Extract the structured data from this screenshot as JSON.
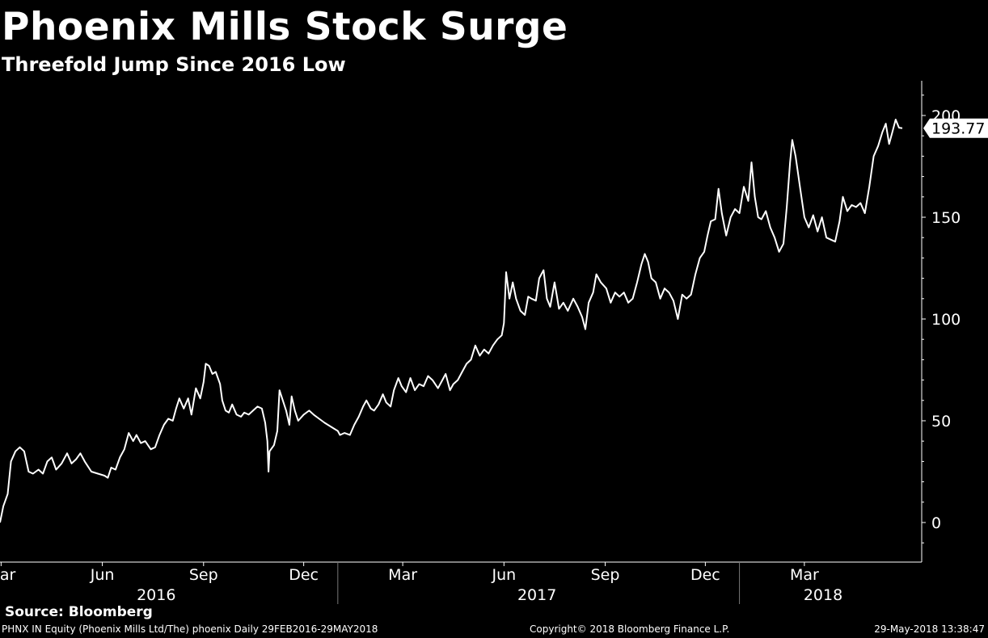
{
  "header": {
    "title": "Phoenix Mills Stock Surge",
    "subtitle": "Threefold Jump Since 2016 Low"
  },
  "footer": {
    "source": "Source: Bloomberg",
    "left": "PHNX IN Equity (Phoenix Mills Ltd/The) phoenix  Daily 29FEB2016-29MAY2018",
    "middle": "Copyright© 2018 Bloomberg Finance L.P.",
    "right": "29-May-2018 13:38:47"
  },
  "chart_data": {
    "type": "line",
    "title": "Phoenix Mills Stock Surge",
    "subtitle": "Threefold Jump Since 2016 Low",
    "xlabel": "",
    "ylabel": "",
    "ylim": [
      -20,
      220
    ],
    "yticks": [
      0,
      50,
      100,
      150,
      200
    ],
    "y_axis_side": "right",
    "grid": false,
    "colors": {
      "background": "#000000",
      "line": "#ffffff",
      "text": "#ffffff"
    },
    "last_value_label": "193.77",
    "x_month_ticks": [
      {
        "label": "Mar",
        "x": "2016-03-01"
      },
      {
        "label": "Jun",
        "x": "2016-06-01"
      },
      {
        "label": "Sep",
        "x": "2016-09-01"
      },
      {
        "label": "Dec",
        "x": "2016-12-01"
      },
      {
        "label": "Mar",
        "x": "2017-03-01"
      },
      {
        "label": "Jun",
        "x": "2017-06-01"
      },
      {
        "label": "Sep",
        "x": "2017-09-01"
      },
      {
        "label": "Dec",
        "x": "2017-12-01"
      },
      {
        "label": "Mar",
        "x": "2018-03-01"
      }
    ],
    "x_year_labels": [
      {
        "label": "2016",
        "x": "2016-07-20"
      },
      {
        "label": "2017",
        "x": "2017-07-01"
      },
      {
        "label": "2018",
        "x": "2018-03-18"
      }
    ],
    "x_year_boundaries": [
      "2017-01-01",
      "2018-01-01"
    ],
    "series": [
      {
        "points": [
          [
            "2016-02-29",
            0
          ],
          [
            "2016-03-03",
            8
          ],
          [
            "2016-03-07",
            14
          ],
          [
            "2016-03-10",
            30
          ],
          [
            "2016-03-14",
            35
          ],
          [
            "2016-03-18",
            37
          ],
          [
            "2016-03-22",
            35
          ],
          [
            "2016-03-26",
            25
          ],
          [
            "2016-03-30",
            24
          ],
          [
            "2016-04-04",
            26
          ],
          [
            "2016-04-08",
            24
          ],
          [
            "2016-04-12",
            30
          ],
          [
            "2016-04-16",
            32
          ],
          [
            "2016-04-20",
            26
          ],
          [
            "2016-04-25",
            29
          ],
          [
            "2016-04-30",
            34
          ],
          [
            "2016-05-04",
            29
          ],
          [
            "2016-05-08",
            31
          ],
          [
            "2016-05-12",
            34
          ],
          [
            "2016-05-16",
            30
          ],
          [
            "2016-05-22",
            25
          ],
          [
            "2016-05-28",
            24
          ],
          [
            "2016-06-03",
            23
          ],
          [
            "2016-06-06",
            22
          ],
          [
            "2016-06-09",
            27
          ],
          [
            "2016-06-13",
            26
          ],
          [
            "2016-06-17",
            32
          ],
          [
            "2016-06-21",
            36
          ],
          [
            "2016-06-25",
            44
          ],
          [
            "2016-06-29",
            40
          ],
          [
            "2016-07-02",
            43
          ],
          [
            "2016-07-06",
            39
          ],
          [
            "2016-07-10",
            40
          ],
          [
            "2016-07-15",
            36
          ],
          [
            "2016-07-19",
            37
          ],
          [
            "2016-07-23",
            43
          ],
          [
            "2016-07-27",
            48
          ],
          [
            "2016-07-31",
            51
          ],
          [
            "2016-08-04",
            50
          ],
          [
            "2016-08-07",
            56
          ],
          [
            "2016-08-10",
            61
          ],
          [
            "2016-08-14",
            56
          ],
          [
            "2016-08-18",
            61
          ],
          [
            "2016-08-21",
            53
          ],
          [
            "2016-08-25",
            66
          ],
          [
            "2016-08-29",
            61
          ],
          [
            "2016-09-01",
            69
          ],
          [
            "2016-09-03",
            78
          ],
          [
            "2016-09-06",
            77
          ],
          [
            "2016-09-09",
            73
          ],
          [
            "2016-09-12",
            74
          ],
          [
            "2016-09-16",
            68
          ],
          [
            "2016-09-18",
            60
          ],
          [
            "2016-09-21",
            55
          ],
          [
            "2016-09-24",
            54
          ],
          [
            "2016-09-27",
            58
          ],
          [
            "2016-10-01",
            53
          ],
          [
            "2016-10-05",
            52
          ],
          [
            "2016-10-08",
            54
          ],
          [
            "2016-10-12",
            53
          ],
          [
            "2016-10-16",
            55
          ],
          [
            "2016-10-20",
            57
          ],
          [
            "2016-10-24",
            56
          ],
          [
            "2016-10-27",
            49
          ],
          [
            "2016-10-29",
            40
          ],
          [
            "2016-10-30",
            25
          ],
          [
            "2016-10-31",
            35
          ],
          [
            "2016-11-04",
            38
          ],
          [
            "2016-11-07",
            45
          ],
          [
            "2016-11-09",
            65
          ],
          [
            "2016-11-12",
            60
          ],
          [
            "2016-11-15",
            55
          ],
          [
            "2016-11-18",
            48
          ],
          [
            "2016-11-20",
            62
          ],
          [
            "2016-11-23",
            55
          ],
          [
            "2016-11-26",
            50
          ],
          [
            "2016-12-01",
            53
          ],
          [
            "2016-12-06",
            55
          ],
          [
            "2016-12-10",
            53
          ],
          [
            "2016-12-15",
            51
          ],
          [
            "2016-12-20",
            49
          ],
          [
            "2016-12-26",
            47
          ],
          [
            "2017-01-01",
            45
          ],
          [
            "2017-01-03",
            43
          ],
          [
            "2017-01-07",
            44
          ],
          [
            "2017-01-12",
            43
          ],
          [
            "2017-01-16",
            48
          ],
          [
            "2017-01-20",
            52
          ],
          [
            "2017-01-24",
            57
          ],
          [
            "2017-01-27",
            60
          ],
          [
            "2017-01-31",
            56
          ],
          [
            "2017-02-03",
            55
          ],
          [
            "2017-02-07",
            58
          ],
          [
            "2017-02-11",
            63
          ],
          [
            "2017-02-14",
            59
          ],
          [
            "2017-02-18",
            57
          ],
          [
            "2017-02-21",
            65
          ],
          [
            "2017-02-25",
            71
          ],
          [
            "2017-02-28",
            67
          ],
          [
            "2017-03-04",
            64
          ],
          [
            "2017-03-08",
            71
          ],
          [
            "2017-03-12",
            65
          ],
          [
            "2017-03-16",
            68
          ],
          [
            "2017-03-20",
            67
          ],
          [
            "2017-03-24",
            72
          ],
          [
            "2017-03-28",
            70
          ],
          [
            "2017-04-02",
            66
          ],
          [
            "2017-04-05",
            69
          ],
          [
            "2017-04-09",
            73
          ],
          [
            "2017-04-13",
            65
          ],
          [
            "2017-04-16",
            68
          ],
          [
            "2017-04-20",
            70
          ],
          [
            "2017-04-24",
            74
          ],
          [
            "2017-04-28",
            78
          ],
          [
            "2017-05-02",
            80
          ],
          [
            "2017-05-06",
            87
          ],
          [
            "2017-05-10",
            82
          ],
          [
            "2017-05-14",
            85
          ],
          [
            "2017-05-18",
            83
          ],
          [
            "2017-05-22",
            87
          ],
          [
            "2017-05-26",
            90
          ],
          [
            "2017-05-30",
            92
          ],
          [
            "2017-06-01",
            98
          ],
          [
            "2017-06-03",
            123
          ],
          [
            "2017-06-06",
            110
          ],
          [
            "2017-06-09",
            118
          ],
          [
            "2017-06-12",
            110
          ],
          [
            "2017-06-16",
            104
          ],
          [
            "2017-06-20",
            102
          ],
          [
            "2017-06-23",
            111
          ],
          [
            "2017-06-26",
            110
          ],
          [
            "2017-06-30",
            109
          ],
          [
            "2017-07-03",
            120
          ],
          [
            "2017-07-07",
            124
          ],
          [
            "2017-07-10",
            110
          ],
          [
            "2017-07-13",
            106
          ],
          [
            "2017-07-17",
            118
          ],
          [
            "2017-07-21",
            105
          ],
          [
            "2017-07-25",
            108
          ],
          [
            "2017-07-29",
            104
          ],
          [
            "2017-08-03",
            110
          ],
          [
            "2017-08-07",
            106
          ],
          [
            "2017-08-11",
            101
          ],
          [
            "2017-08-14",
            95
          ],
          [
            "2017-08-17",
            108
          ],
          [
            "2017-08-21",
            113
          ],
          [
            "2017-08-24",
            122
          ],
          [
            "2017-08-28",
            118
          ],
          [
            "2017-09-02",
            115
          ],
          [
            "2017-09-06",
            108
          ],
          [
            "2017-09-10",
            113
          ],
          [
            "2017-09-14",
            111
          ],
          [
            "2017-09-18",
            113
          ],
          [
            "2017-09-22",
            108
          ],
          [
            "2017-09-26",
            110
          ],
          [
            "2017-09-30",
            118
          ],
          [
            "2017-10-04",
            127
          ],
          [
            "2017-10-07",
            132
          ],
          [
            "2017-10-10",
            128
          ],
          [
            "2017-10-13",
            120
          ],
          [
            "2017-10-17",
            118
          ],
          [
            "2017-10-21",
            110
          ],
          [
            "2017-10-25",
            115
          ],
          [
            "2017-10-29",
            113
          ],
          [
            "2017-11-02",
            109
          ],
          [
            "2017-11-06",
            100
          ],
          [
            "2017-11-10",
            112
          ],
          [
            "2017-11-14",
            110
          ],
          [
            "2017-11-18",
            112
          ],
          [
            "2017-11-22",
            122
          ],
          [
            "2017-11-26",
            130
          ],
          [
            "2017-11-30",
            133
          ],
          [
            "2017-12-03",
            141
          ],
          [
            "2017-12-06",
            148
          ],
          [
            "2017-12-10",
            149
          ],
          [
            "2017-12-13",
            164
          ],
          [
            "2017-12-16",
            152
          ],
          [
            "2017-12-20",
            141
          ],
          [
            "2017-12-24",
            150
          ],
          [
            "2017-12-28",
            154
          ],
          [
            "2018-01-01",
            152
          ],
          [
            "2018-01-05",
            165
          ],
          [
            "2018-01-09",
            158
          ],
          [
            "2018-01-12",
            177
          ],
          [
            "2018-01-15",
            160
          ],
          [
            "2018-01-18",
            150
          ],
          [
            "2018-01-21",
            149
          ],
          [
            "2018-01-25",
            153
          ],
          [
            "2018-01-29",
            145
          ],
          [
            "2018-02-02",
            140
          ],
          [
            "2018-02-06",
            133
          ],
          [
            "2018-02-10",
            137
          ],
          [
            "2018-02-13",
            155
          ],
          [
            "2018-02-16",
            177
          ],
          [
            "2018-02-18",
            188
          ],
          [
            "2018-02-21",
            180
          ],
          [
            "2018-02-25",
            165
          ],
          [
            "2018-03-01",
            150
          ],
          [
            "2018-03-05",
            145
          ],
          [
            "2018-03-09",
            151
          ],
          [
            "2018-03-13",
            143
          ],
          [
            "2018-03-17",
            150
          ],
          [
            "2018-03-21",
            140
          ],
          [
            "2018-03-25",
            139
          ],
          [
            "2018-03-29",
            138
          ],
          [
            "2018-04-02",
            148
          ],
          [
            "2018-04-05",
            160
          ],
          [
            "2018-04-09",
            153
          ],
          [
            "2018-04-13",
            156
          ],
          [
            "2018-04-17",
            155
          ],
          [
            "2018-04-21",
            157
          ],
          [
            "2018-04-25",
            152
          ],
          [
            "2018-04-29",
            165
          ],
          [
            "2018-05-03",
            180
          ],
          [
            "2018-05-07",
            185
          ],
          [
            "2018-05-11",
            192
          ],
          [
            "2018-05-14",
            196
          ],
          [
            "2018-05-17",
            186
          ],
          [
            "2018-05-20",
            192
          ],
          [
            "2018-05-23",
            198
          ],
          [
            "2018-05-26",
            194
          ],
          [
            "2018-05-29",
            193.77
          ]
        ]
      }
    ]
  }
}
